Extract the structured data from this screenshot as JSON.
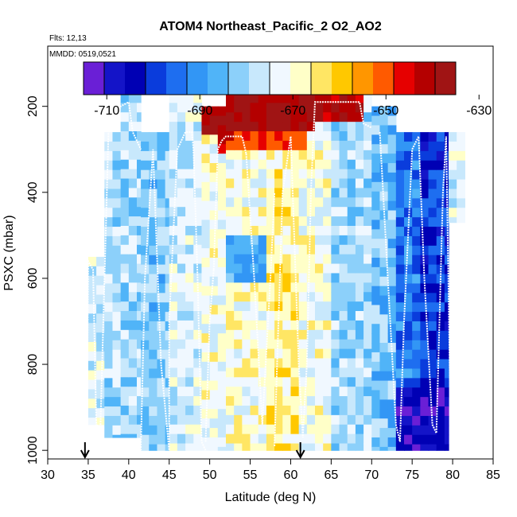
{
  "chart_data": {
    "type": "heatmap",
    "title": "ATOM4 Northeast_Pacific_2 O2_AO2",
    "flights_label": "Flts: 12,13",
    "date_label": "MMDD: 0519,0521",
    "xlabel": "Latitude (deg N)",
    "ylabel": "PSXC (mbar)",
    "xlim": [
      30,
      85
    ],
    "ylim": [
      1020,
      60
    ],
    "x_ticks": [
      "30",
      "35",
      "40",
      "45",
      "50",
      "55",
      "60",
      "65",
      "70",
      "75",
      "80",
      "85"
    ],
    "y_ticks": [
      "200",
      "400",
      "600",
      "800",
      "1000"
    ],
    "colorbar": {
      "range": [
        -715,
        -635
      ],
      "ticks": [
        "-710",
        "-690",
        "-670",
        "-650",
        "-630"
      ],
      "colors": [
        "#6a1fd6",
        "#1414c8",
        "#0000b4",
        "#0a3cdc",
        "#1e6ef0",
        "#3296f5",
        "#50b4f8",
        "#8cd0fa",
        "#c8e8fc",
        "#f0f8ff",
        "#ffffc8",
        "#ffe664",
        "#ffc800",
        "#ff9600",
        "#ff5a00",
        "#e60000",
        "#b40000",
        "#a01414"
      ]
    },
    "flight_markers_lat": [
      34.6,
      61.2
    ],
    "columns": [
      {
        "lat": [
          35,
          37
        ],
        "p_top": 550,
        "p_bot": 940,
        "value": -676
      },
      {
        "lat": [
          37,
          39
        ],
        "p_top": 260,
        "p_bot": 970,
        "value": -678
      },
      {
        "lat": [
          39,
          41.5
        ],
        "p_top": 170,
        "p_bot": 970,
        "value": -680
      },
      {
        "lat": [
          41.5,
          45
        ],
        "p_top": 260,
        "p_bot": 1000,
        "value": -682
      },
      {
        "lat": [
          45,
          49
        ],
        "p_top": 170,
        "p_bot": 1000,
        "value": -676
      },
      {
        "lat": [
          49,
          52
        ],
        "p_top": 200,
        "p_bot": 1000,
        "value": -672
      },
      {
        "lat": [
          52,
          57
        ],
        "p_top": 170,
        "p_bot": 1000,
        "value": -670
      },
      {
        "lat": [
          57,
          61
        ],
        "p_top": 170,
        "p_bot": 1000,
        "value": -666
      },
      {
        "lat": [
          61,
          65
        ],
        "p_top": 170,
        "p_bot": 1000,
        "value": -672
      },
      {
        "lat": [
          65,
          70
        ],
        "p_top": 170,
        "p_bot": 1000,
        "value": -680
      },
      {
        "lat": [
          70,
          73
        ],
        "p_top": 200,
        "p_bot": 1000,
        "value": -684
      },
      {
        "lat": [
          73,
          76
        ],
        "p_top": 260,
        "p_bot": 1000,
        "value": -694
      },
      {
        "lat": [
          76,
          79.5
        ],
        "p_top": 260,
        "p_bot": 1000,
        "value": -700
      },
      {
        "lat": [
          79.5,
          81.5
        ],
        "p_top": 260,
        "p_bot": 470,
        "value": -676
      }
    ],
    "features": [
      {
        "lat": [
          49,
          63
        ],
        "p": [
          170,
          260
        ],
        "value": -638
      },
      {
        "lat": [
          51,
          62
        ],
        "p": [
          260,
          310
        ],
        "value": -648
      },
      {
        "lat": [
          62,
          69
        ],
        "p": [
          170,
          240
        ],
        "value": -640
      },
      {
        "lat": [
          52,
          57
        ],
        "p": [
          500,
          600
        ],
        "value": -688
      },
      {
        "lat": [
          73,
          80
        ],
        "p": [
          860,
          1000
        ],
        "value": -708
      }
    ],
    "flight_tracks": [
      [
        [
          34.8,
          1000
        ],
        [
          35,
          560
        ],
        [
          35.6,
          580
        ],
        [
          36,
          940
        ],
        [
          36.5,
          950
        ],
        [
          37.5,
          260
        ],
        [
          38.5,
          230
        ],
        [
          39,
          200
        ],
        [
          40,
          190
        ],
        [
          40.5,
          260
        ],
        [
          41,
          280
        ],
        [
          41.5,
          300
        ]
      ],
      [
        [
          41.5,
          1000
        ],
        [
          41.5,
          990
        ],
        [
          42,
          600
        ],
        [
          43,
          300
        ],
        [
          44,
          800
        ],
        [
          45,
          1000
        ],
        [
          45,
          700
        ],
        [
          46,
          300
        ],
        [
          47,
          260
        ],
        [
          47.8,
          260
        ],
        [
          48,
          300
        ],
        [
          48.5,
          600
        ],
        [
          49,
          980
        ],
        [
          49.5,
          1000
        ]
      ],
      [
        [
          49.5,
          980
        ],
        [
          50,
          700
        ],
        [
          50.5,
          580
        ]
      ],
      [
        [
          50.5,
          580
        ],
        [
          51,
          300
        ],
        [
          51.5,
          280
        ],
        [
          52,
          270
        ],
        [
          54,
          270
        ],
        [
          54.5,
          310
        ]
      ],
      [
        [
          54.5,
          310
        ],
        [
          55.5,
          600
        ],
        [
          56.5,
          940
        ],
        [
          57.5,
          600
        ],
        [
          58,
          400
        ]
      ],
      [
        [
          58,
          990
        ],
        [
          59,
          400
        ],
        [
          60,
          270
        ],
        [
          61,
          800
        ],
        [
          61.5,
          970
        ],
        [
          62,
          800
        ],
        [
          62.5,
          400
        ],
        [
          63,
          190
        ],
        [
          66,
          190
        ],
        [
          68.5,
          190
        ],
        [
          69,
          240
        ],
        [
          70,
          250
        ]
      ],
      [
        [
          71,
          260
        ],
        [
          72,
          600
        ],
        [
          73,
          940
        ],
        [
          73.5,
          980
        ],
        [
          74,
          700
        ],
        [
          75,
          300
        ],
        [
          75.8,
          270
        ],
        [
          76.5,
          600
        ],
        [
          77.5,
          940
        ],
        [
          78,
          960
        ],
        [
          78.8,
          400
        ],
        [
          79.2,
          270
        ],
        [
          79.8,
          1000
        ]
      ]
    ]
  }
}
